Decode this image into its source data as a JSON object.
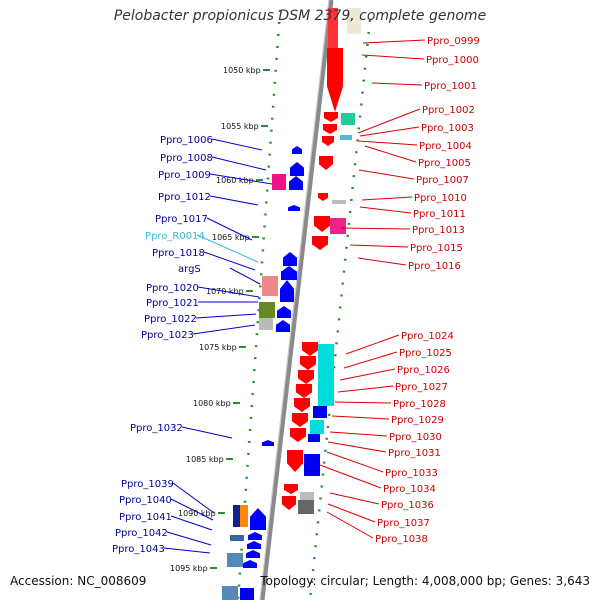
{
  "title": "Pelobacter propionicus DSM 2379, complete genome",
  "footer": {
    "accession": "Accession: NC_008609",
    "summary": "Topology: circular; Length: 4,008,000 bp; Genes: 3,643"
  },
  "colors": {
    "backbone": "#8a8a8a",
    "tick": "#2e8b2e",
    "forward_gene": "#ff0000",
    "reverse_gene": "#0000ff",
    "rna_label": "#33bbdd",
    "right_label": "#cc0000",
    "left_label": "#000099"
  },
  "kbp_ticks": [
    "1050 kbp",
    "1055 kbp",
    "1060 kbp",
    "1065 kbp",
    "1070 kbp",
    "1075 kbp",
    "1080 kbp",
    "1085 kbp",
    "1090 kbp",
    "1095 kbp"
  ],
  "left_labels": [
    {
      "text": "Ppro_1006",
      "color": "#000099"
    },
    {
      "text": "Ppro_1008",
      "color": "#000099"
    },
    {
      "text": "Ppro_1009",
      "color": "#000099"
    },
    {
      "text": "Ppro_1012",
      "color": "#000099"
    },
    {
      "text": "Ppro_1017",
      "color": "#000099"
    },
    {
      "text": "Ppro_R0014",
      "color": "#33bbdd"
    },
    {
      "text": "Ppro_1018",
      "color": "#000099"
    },
    {
      "text": "argS",
      "color": "#000099"
    },
    {
      "text": "Ppro_1020",
      "color": "#000099"
    },
    {
      "text": "Ppro_1021",
      "color": "#000099"
    },
    {
      "text": "Ppro_1022",
      "color": "#000099"
    },
    {
      "text": "Ppro_1023",
      "color": "#000099"
    },
    {
      "text": "Ppro_1032",
      "color": "#000099"
    },
    {
      "text": "Ppro_1039",
      "color": "#000099"
    },
    {
      "text": "Ppro_1040",
      "color": "#000099"
    },
    {
      "text": "Ppro_1041",
      "color": "#000099"
    },
    {
      "text": "Ppro_1042",
      "color": "#000099"
    },
    {
      "text": "Ppro_1043",
      "color": "#000099"
    }
  ],
  "right_labels": [
    {
      "text": "Ppro_0999"
    },
    {
      "text": "Ppro_1000"
    },
    {
      "text": "Ppro_1001"
    },
    {
      "text": "Ppro_1002"
    },
    {
      "text": "Ppro_1003"
    },
    {
      "text": "Ppro_1004"
    },
    {
      "text": "Ppro_1005"
    },
    {
      "text": "Ppro_1007"
    },
    {
      "text": "Ppro_1010"
    },
    {
      "text": "Ppro_1011"
    },
    {
      "text": "Ppro_1013"
    },
    {
      "text": "Ppro_1015"
    },
    {
      "text": "Ppro_1016"
    },
    {
      "text": "Ppro_1024"
    },
    {
      "text": "Ppro_1025"
    },
    {
      "text": "Ppro_1026"
    },
    {
      "text": "Ppro_1027"
    },
    {
      "text": "Ppro_1028"
    },
    {
      "text": "Ppro_1029"
    },
    {
      "text": "Ppro_1030"
    },
    {
      "text": "Ppro_1031"
    },
    {
      "text": "Ppro_1033"
    },
    {
      "text": "Ppro_1034"
    },
    {
      "text": "Ppro_1036"
    },
    {
      "text": "Ppro_1037"
    },
    {
      "text": "Ppro_1038"
    }
  ]
}
